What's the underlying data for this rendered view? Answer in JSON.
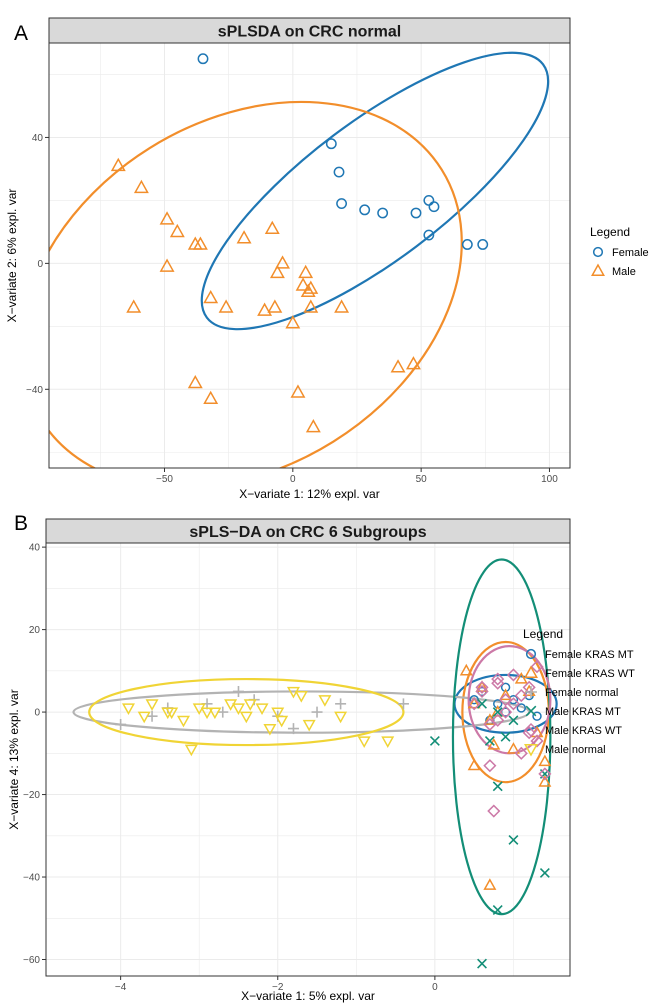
{
  "chart_data": [
    {
      "panel_label": "A",
      "type": "scatter",
      "title": "sPLSDA on CRC normal",
      "xlabel": "X−variate 1: 12% expl. var",
      "ylabel": "X−variate 2: 6% expl. var",
      "xlim": [
        -95,
        108
      ],
      "ylim": [
        -65,
        70
      ],
      "xticks": [
        -50,
        0,
        50,
        100
      ],
      "yticks": [
        -40,
        0,
        40
      ],
      "xtick_labels": [
        "−50",
        "0",
        "50",
        "100"
      ],
      "ytick_labels": [
        "−40",
        "0",
        "40"
      ],
      "grid": true,
      "legend_title": "Legend",
      "legend_position": "right",
      "series": [
        {
          "name": "Female",
          "color": "#1f77b4",
          "shape": "circle",
          "x": [
            -35,
            15,
            18,
            19,
            28,
            35,
            48,
            53,
            53,
            55,
            68,
            74
          ],
          "y": [
            65,
            38,
            29,
            19,
            17,
            16,
            16,
            20,
            9,
            18,
            6,
            6
          ],
          "ellipse": {
            "cx": 32,
            "cy": 23,
            "rx": 82,
            "ry": 22,
            "angle_deg": -37
          }
        },
        {
          "name": "Male",
          "color": "#f28e2b",
          "shape": "triangle-up",
          "x": [
            -68,
            -59,
            -62,
            -49,
            -45,
            -49,
            -38,
            -36,
            -32,
            -19,
            -38,
            -26,
            -11,
            -7,
            -8,
            -6,
            -4,
            0,
            4,
            5,
            6,
            7,
            7,
            19,
            -32,
            2,
            8,
            41,
            47
          ],
          "y": [
            31,
            24,
            -14,
            14,
            10,
            -1,
            6,
            6,
            -11,
            8,
            -38,
            -14,
            -15,
            -14,
            11,
            -3,
            0,
            -19,
            -7,
            -3,
            -9,
            -8,
            -14,
            -14,
            -43,
            -41,
            -52,
            -33,
            -32
          ],
          "ellipse": {
            "cx": -20,
            "cy": -10,
            "rx": 92,
            "ry": 55,
            "angle_deg": -32
          }
        }
      ]
    },
    {
      "panel_label": "B",
      "type": "scatter",
      "title": "sPLS−DA on CRC 6 Subgroups",
      "xlabel": "X−variate 1: 5% expl. var",
      "ylabel": "X−variate 4: 13% expl. var",
      "xlim": [
        -4.95,
        1.72
      ],
      "ylim": [
        -64,
        41
      ],
      "xticks": [
        -4,
        -2,
        0
      ],
      "yticks": [
        -60,
        -40,
        -20,
        0,
        20,
        40
      ],
      "xtick_labels": [
        "−4",
        "−2",
        "0"
      ],
      "ytick_labels": [
        "−60",
        "−40",
        "−20",
        "0",
        "20",
        "40"
      ],
      "grid": true,
      "legend_title": "Legend",
      "legend_position": "right",
      "series": [
        {
          "name": "Female KRAS MT",
          "color": "#1f77b4",
          "shape": "circle",
          "x": [
            0.6,
            0.8,
            0.9,
            1.0,
            1.2,
            0.7,
            0.9,
            1.1,
            0.5,
            1.3
          ],
          "y": [
            5,
            2,
            0,
            3,
            4,
            -2,
            6,
            1,
            3,
            -1
          ],
          "ellipse": {
            "cx": 0.9,
            "cy": 2,
            "rx": 0.65,
            "ry": 7,
            "angle_deg": 0
          }
        },
        {
          "name": "Female KRAS WT",
          "color": "#f28e2b",
          "shape": "triangle-up",
          "x": [
            0.4,
            0.6,
            0.7,
            0.9,
            1.1,
            1.3,
            1.4,
            0.5,
            0.8,
            1.0,
            1.2,
            0.7,
            1.4,
            0.75,
            0.5
          ],
          "y": [
            10,
            6,
            -2,
            4,
            8,
            -5,
            -17,
            -13,
            0,
            -9,
            5,
            -42,
            -12,
            -8,
            2
          ],
          "ellipse": {
            "cx": 0.9,
            "cy": 0,
            "rx": 0.55,
            "ry": 17,
            "angle_deg": 0
          }
        },
        {
          "name": "Female normal",
          "color": "#b3b3b3",
          "shape": "plus",
          "x": [
            -4.0,
            -3.4,
            -2.9,
            -2.5,
            -2.3,
            -2.0,
            -1.8,
            -1.5,
            -1.2,
            -0.4,
            -3.6,
            -2.7
          ],
          "y": [
            -3,
            1,
            2,
            5,
            3,
            -1,
            -4,
            0,
            2,
            2,
            -1,
            0
          ],
          "ellipse": {
            "cx": -1.7,
            "cy": 0,
            "rx": 2.9,
            "ry": 5,
            "angle_deg": 0
          }
        },
        {
          "name": "Male KRAS MT",
          "color": "#138e77",
          "shape": "x",
          "x": [
            0.0,
            0.6,
            0.7,
            0.8,
            1.0,
            1.4,
            0.9,
            0.8,
            0.6,
            1.0,
            1.4,
            0.8
          ],
          "y": [
            -7,
            2,
            -7,
            -18,
            -31,
            -39,
            -6,
            -48,
            -61,
            -2,
            -15,
            0
          ],
          "ellipse": {
            "cx": 0.85,
            "cy": -6,
            "rx": 0.62,
            "ry": 43,
            "angle_deg": 0
          }
        },
        {
          "name": "Male KRAS WT",
          "color": "#cc79a7",
          "shape": "diamond",
          "x": [
            0.6,
            0.8,
            1.0,
            1.2,
            0.7,
            0.9,
            1.1,
            1.3,
            0.5,
            0.8,
            1.0,
            1.2,
            0.6,
            0.9,
            1.4,
            0.7,
            1.1,
            0.8,
            0.75,
            1.3
          ],
          "y": [
            5,
            8,
            2,
            6,
            -3,
            0,
            4,
            11,
            2,
            -2,
            9,
            -5,
            6,
            3,
            -15,
            -13,
            -10,
            7,
            -24,
            -7
          ],
          "ellipse": {
            "cx": 0.95,
            "cy": 3,
            "rx": 0.52,
            "ry": 13,
            "angle_deg": 0
          }
        },
        {
          "name": "Male normal",
          "color": "#f0d435",
          "shape": "triangle-down",
          "x": [
            -3.9,
            -3.7,
            -3.6,
            -3.4,
            -3.2,
            -3.0,
            -2.8,
            -2.6,
            -2.4,
            -2.2,
            -2.0,
            -1.8,
            -1.6,
            -1.4,
            -1.2,
            -3.1,
            -2.9,
            -2.5,
            -2.1,
            -1.7,
            -0.9,
            -0.6,
            -3.35,
            -2.35,
            -1.95
          ],
          "y": [
            1,
            -1,
            2,
            0,
            -2,
            1,
            0,
            2,
            -1,
            1,
            0,
            5,
            -3,
            3,
            -1,
            -9,
            0,
            1,
            -4,
            4,
            -7,
            -7,
            0,
            2,
            -2
          ],
          "ellipse": {
            "cx": -2.4,
            "cy": 0,
            "rx": 2.0,
            "ry": 8,
            "angle_deg": 0
          }
        }
      ]
    }
  ]
}
